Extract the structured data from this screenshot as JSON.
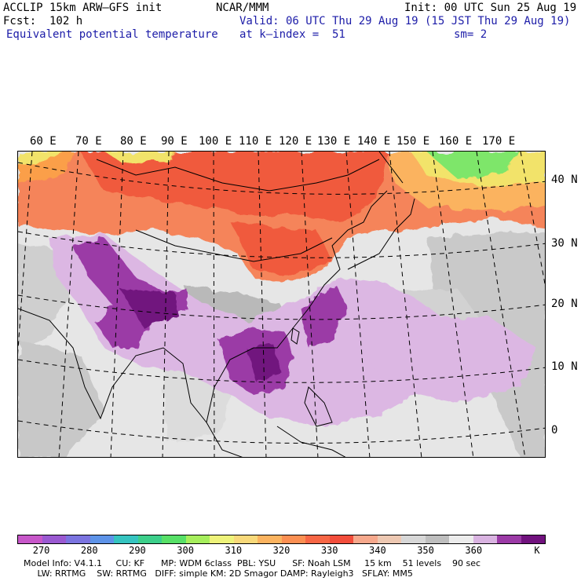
{
  "header": {
    "model_line": "ACCLIP 15km ARW–GFS init",
    "org": "NCAR/MMM",
    "init": "Init: 00 UTC Sun 25 Aug 19",
    "forecast": "Fcst:  102 h",
    "valid": "Valid: 06 UTC Thu 29 Aug 19 (15 JST Thu 29 Aug 19)",
    "field": "Equivalent potential temperature",
    "level": "at k–index =  51",
    "smoothing": "sm= 2"
  },
  "map": {
    "longitude_labels": [
      "60 E",
      "70 E",
      "80 E",
      "90 E",
      "100 E",
      "110 E",
      "120 E",
      "130 E",
      "140 E",
      "150 E",
      "160 E",
      "170 E"
    ],
    "latitude_labels": [
      "40 N",
      "30 N",
      "20 N",
      "10 N",
      "0"
    ],
    "colors": {
      "warm_high": "#f05a3c",
      "warm_mid": "#f5845a",
      "orange": "#fb9f4a",
      "yellow": "#f2e36a",
      "green": "#7ee66a",
      "gray_dark": "#a6a6a6",
      "gray_light": "#d4d4d4",
      "white": "#efefef",
      "lavender": "#d9b3e1",
      "purple": "#9b3aa6",
      "dark_purple": "#71127e"
    }
  },
  "colorbar": {
    "unit": "K",
    "ticks": [
      "270",
      "280",
      "290",
      "300",
      "310",
      "320",
      "330",
      "340",
      "350",
      "360"
    ],
    "colors": [
      "#c757c9",
      "#9a59d1",
      "#7b74e0",
      "#5d93e8",
      "#35c4c0",
      "#3ccf8a",
      "#57e067",
      "#a6ee5c",
      "#eef37a",
      "#f8d97a",
      "#fbb35f",
      "#fb8f52",
      "#f76645",
      "#f24d3b",
      "#f6a88c",
      "#edc8b2",
      "#d7d7d7",
      "#bebebe",
      "#ececec",
      "#d9b3e1",
      "#9b3aa6",
      "#71127e"
    ]
  },
  "footer": {
    "line1": "Model Info: V4.1.1     CU: KF      MP: WDM 6class  PBL: YSU      SF: Noah LSM     15 km    51 levels    90 sec",
    "line2": "     LW: RRTMG    SW: RRTMG   DIFF: simple KM: 2D Smagor DAMP: Rayleigh3   SFLAY: MM5"
  }
}
